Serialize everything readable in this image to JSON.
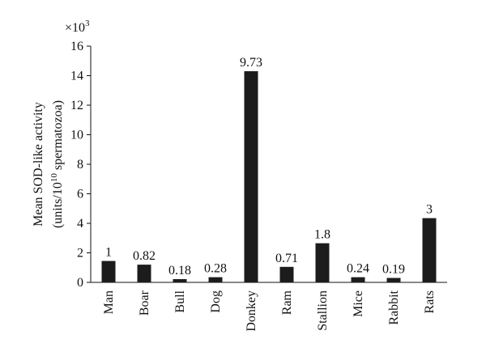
{
  "chart_data": {
    "type": "bar",
    "categories": [
      "Man",
      "Boar",
      "Bull",
      "Dog",
      "Donkey",
      "Ram",
      "Stallion",
      "Mice",
      "Rabbit",
      "Rats"
    ],
    "values": [
      1.45,
      1.2,
      0.22,
      0.35,
      14.3,
      1.05,
      2.65,
      0.35,
      0.3,
      4.35
    ],
    "data_labels": [
      "1",
      "0.82",
      "0.18",
      "0.28",
      "9.73",
      "0.71",
      "1.8",
      "0.24",
      "0.19",
      "3"
    ],
    "ylabel_line1": "Mean SOD-like activity",
    "ylabel_line2_prefix": "(units/10",
    "ylabel_line2_sup": "10",
    "ylabel_line2_suffix": " spermatozoa)",
    "y_multiplier_base": "×10",
    "y_multiplier_exp": "3",
    "ylim": [
      0,
      16
    ],
    "yticks": [
      0,
      2,
      4,
      6,
      8,
      10,
      12,
      14,
      16
    ],
    "ytick_labels": [
      "0",
      "2",
      "4",
      "6",
      "8",
      "10",
      "12",
      "14",
      "16"
    ],
    "grid": false,
    "legend": "none",
    "bar_color": "#1c1c1c"
  }
}
